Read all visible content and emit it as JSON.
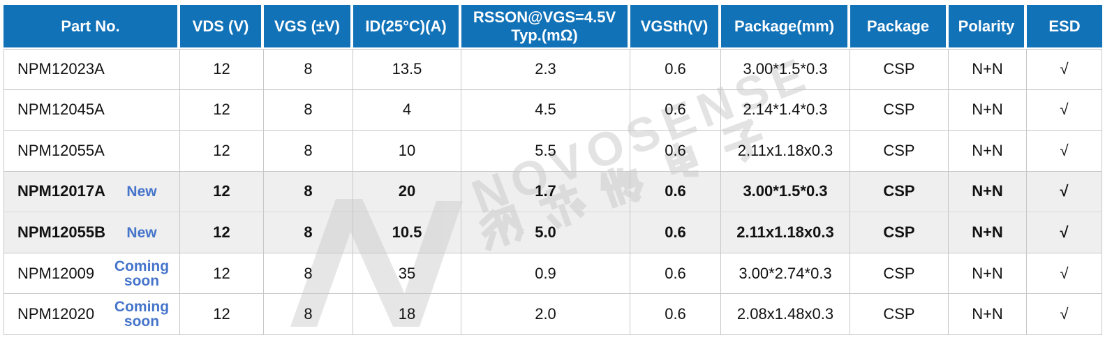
{
  "table": {
    "columns": [
      {
        "key": "part",
        "label": "Part No."
      },
      {
        "key": "vds",
        "label": "VDS (V)"
      },
      {
        "key": "vgs",
        "label": "VGS (±V)"
      },
      {
        "key": "id",
        "label": "ID(25°C)(A)"
      },
      {
        "key": "rsson",
        "label": "RSSON@VGS=4.5V\nTyp.(mΩ)"
      },
      {
        "key": "vgsth",
        "label": "VGSth(V)"
      },
      {
        "key": "pkgmm",
        "label": "Package(mm)"
      },
      {
        "key": "pkg",
        "label": "Package"
      },
      {
        "key": "polarity",
        "label": "Polarity"
      },
      {
        "key": "esd",
        "label": "ESD"
      }
    ],
    "rows": [
      {
        "part": "NPM12023A",
        "tag": "",
        "vds": "12",
        "vgs": "8",
        "id": "13.5",
        "rsson": "2.3",
        "vgsth": "0.6",
        "pkgmm": "3.00*1.5*0.3",
        "pkg": "CSP",
        "polarity": "N+N",
        "esd": "√",
        "highlight": false
      },
      {
        "part": "NPM12045A",
        "tag": "",
        "vds": "12",
        "vgs": "8",
        "id": "4",
        "rsson": "4.5",
        "vgsth": "0.6",
        "pkgmm": "2.14*1.4*0.3",
        "pkg": "CSP",
        "polarity": "N+N",
        "esd": "√",
        "highlight": false
      },
      {
        "part": "NPM12055A",
        "tag": "",
        "vds": "12",
        "vgs": "8",
        "id": "10",
        "rsson": "5.5",
        "vgsth": "0.6",
        "pkgmm": "2.11x1.18x0.3",
        "pkg": "CSP",
        "polarity": "N+N",
        "esd": "√",
        "highlight": false
      },
      {
        "part": "NPM12017A",
        "tag": "New",
        "vds": "12",
        "vgs": "8",
        "id": "20",
        "rsson": "1.7",
        "vgsth": "0.6",
        "pkgmm": "3.00*1.5*0.3",
        "pkg": "CSP",
        "polarity": "N+N",
        "esd": "√",
        "highlight": true
      },
      {
        "part": "NPM12055B",
        "tag": "New",
        "vds": "12",
        "vgs": "8",
        "id": "10.5",
        "rsson": "5.0",
        "vgsth": "0.6",
        "pkgmm": "2.11x1.18x0.3",
        "pkg": "CSP",
        "polarity": "N+N",
        "esd": "√",
        "highlight": true
      },
      {
        "part": "NPM12009",
        "tag": "Coming soon",
        "vds": "12",
        "vgs": "8",
        "id": "35",
        "rsson": "0.9",
        "vgsth": "0.6",
        "pkgmm": "3.00*2.74*0.3",
        "pkg": "CSP",
        "polarity": "N+N",
        "esd": "√",
        "highlight": false
      },
      {
        "part": "NPM12020",
        "tag": "Coming soon",
        "vds": "12",
        "vgs": "8",
        "id": "18",
        "rsson": "2.0",
        "vgsth": "0.6",
        "pkgmm": "2.08x1.48x0.3",
        "pkg": "CSP",
        "polarity": "N+N",
        "esd": "√",
        "highlight": false
      }
    ]
  },
  "watermark": {
    "brand": "NOVOSENSE",
    "chinese": "纳芯微电子",
    "logo": "novosense-n-logo"
  },
  "colors": {
    "header_bg": "#1272B8",
    "tag_blue": "#4574CA",
    "highlight_bg": "#EFEFEF",
    "border": "#C7C7C7",
    "watermark": "#C9C9C9"
  }
}
